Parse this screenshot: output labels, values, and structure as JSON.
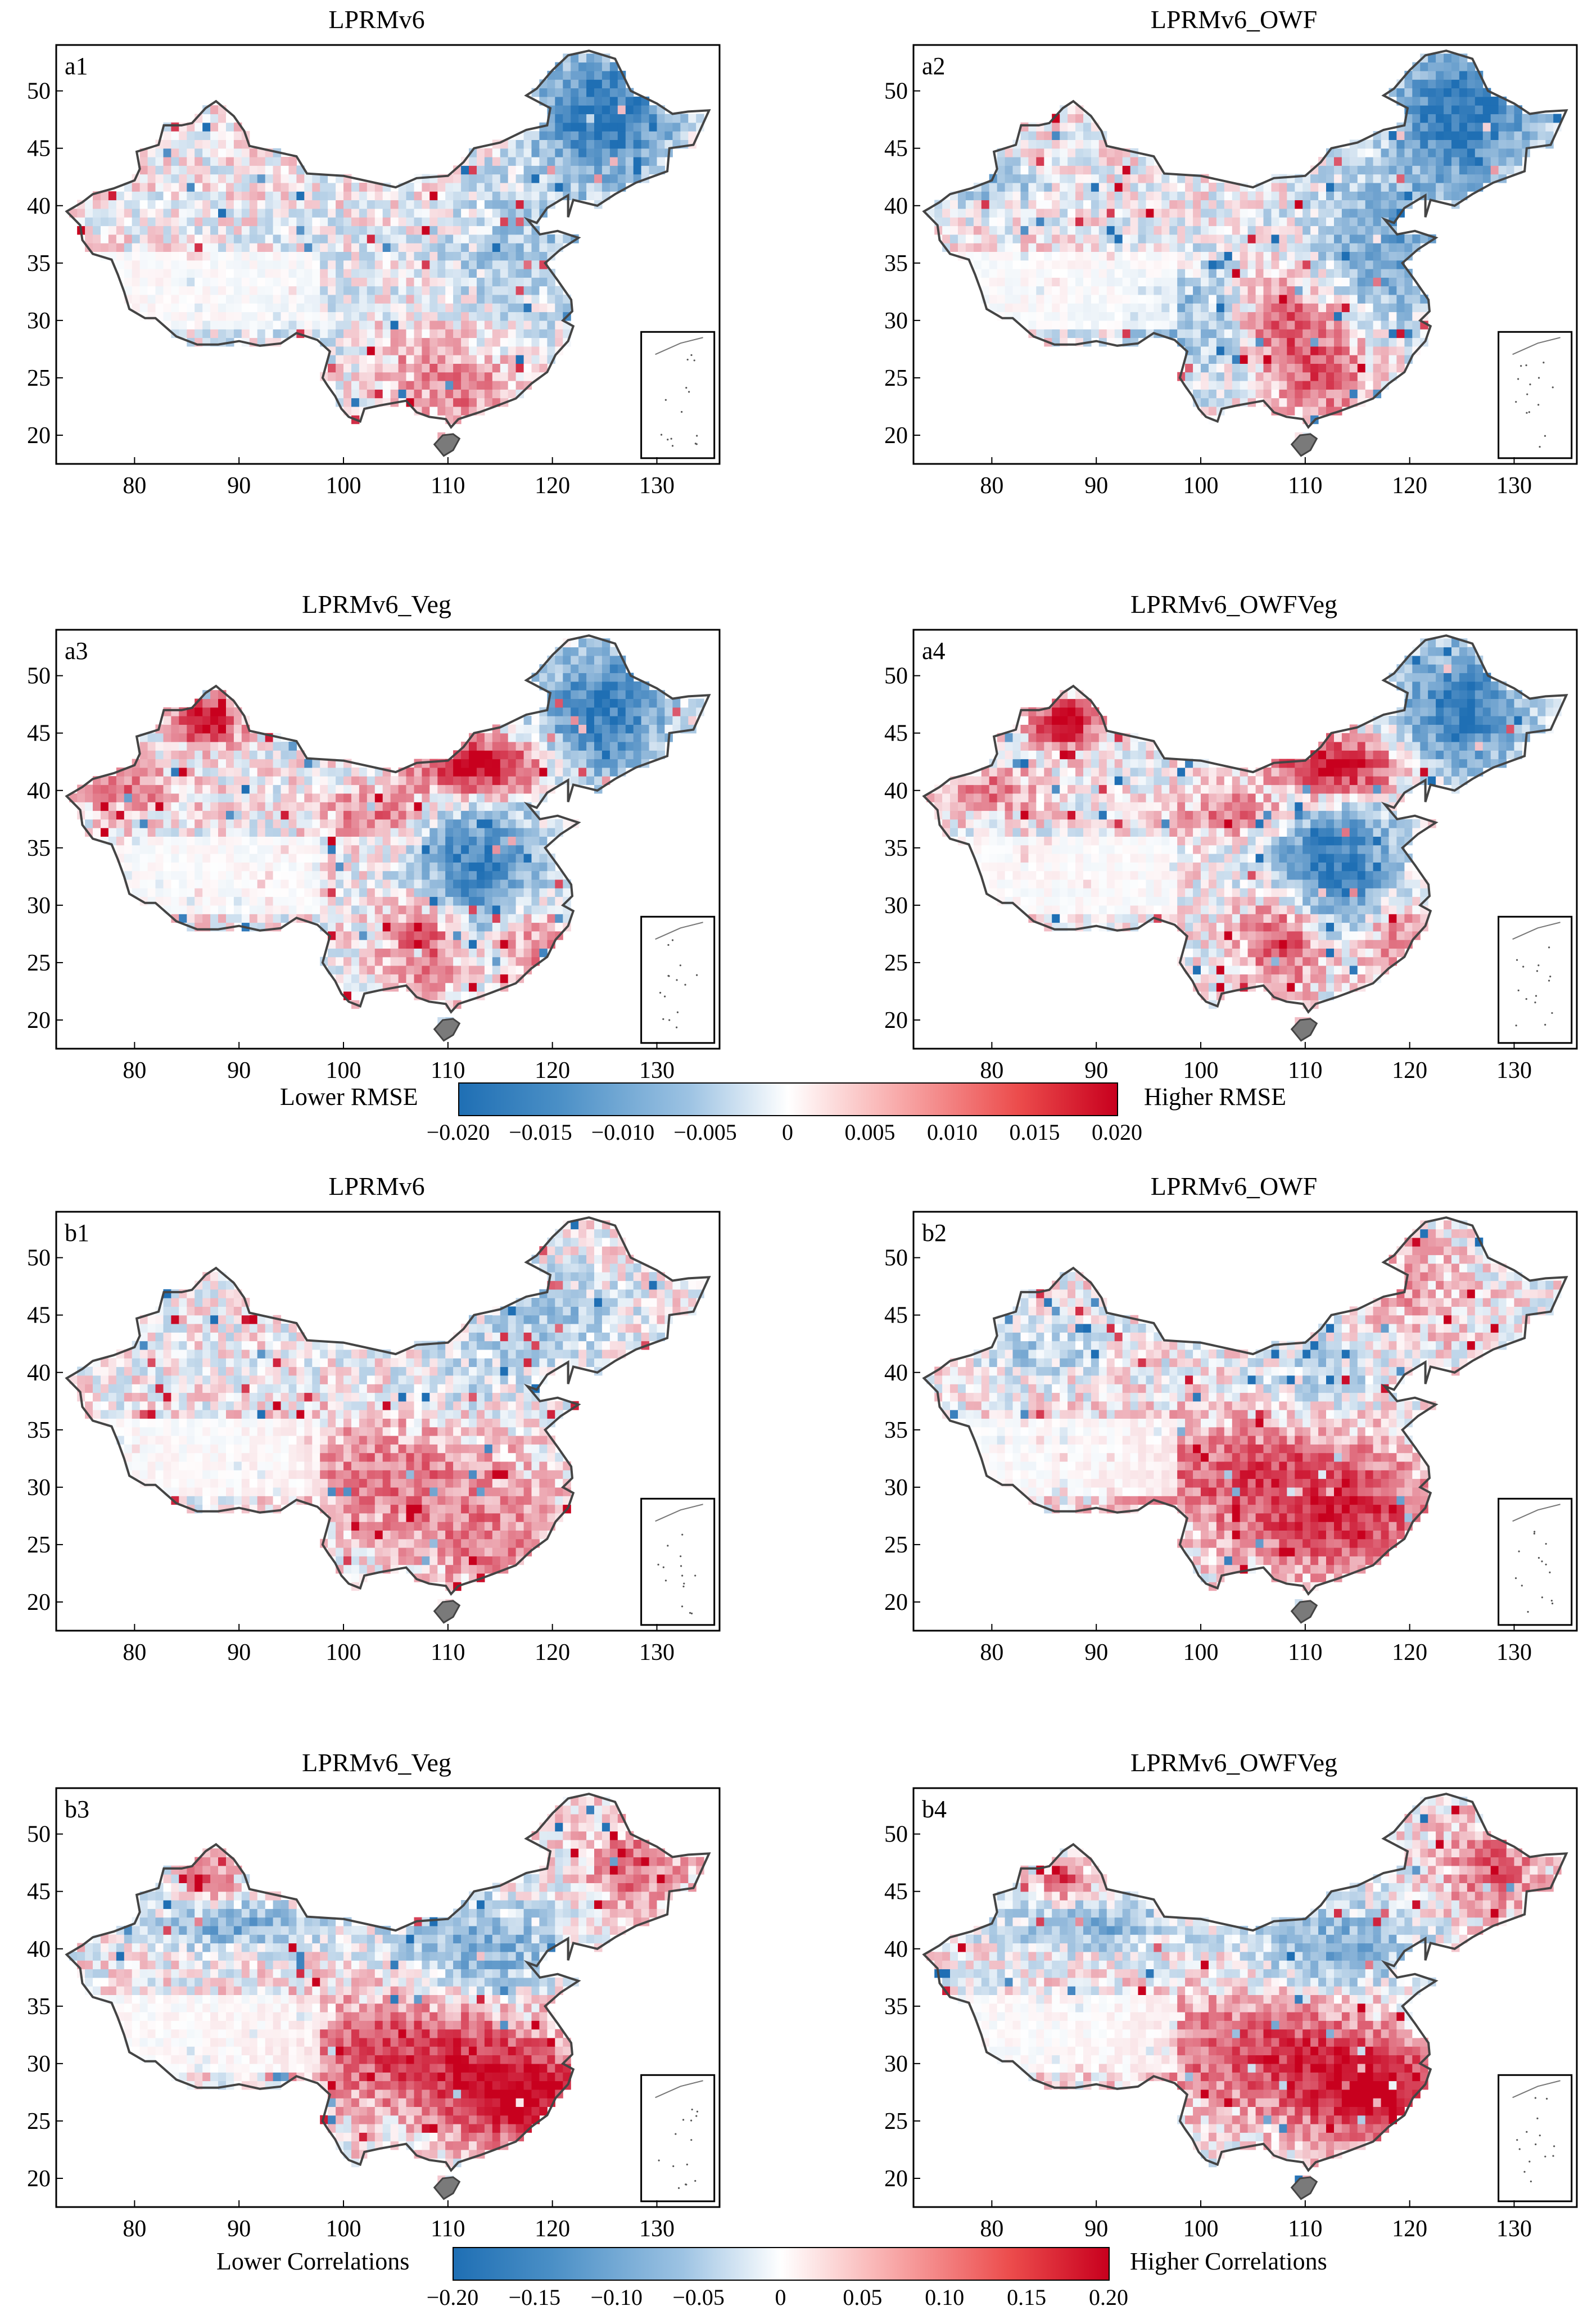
{
  "lon_ticks": [
    "80",
    "90",
    "100",
    "110",
    "120",
    "130"
  ],
  "lat_ticks": [
    "20",
    "25",
    "30",
    "35",
    "40",
    "45",
    "50"
  ],
  "panels": [
    {
      "id": "a1",
      "title": "LPRMv6",
      "label": "a1"
    },
    {
      "id": "a2",
      "title": "LPRMv6_OWF",
      "label": "a2"
    },
    {
      "id": "a3",
      "title": "LPRMv6_Veg",
      "label": "a3"
    },
    {
      "id": "a4",
      "title": "LPRMv6_OWFVeg",
      "label": "a4"
    },
    {
      "id": "b1",
      "title": "LPRMv6",
      "label": "b1"
    },
    {
      "id": "b2",
      "title": "LPRMv6_OWF",
      "label": "b2"
    },
    {
      "id": "b3",
      "title": "LPRMv6_Veg",
      "label": "b3"
    },
    {
      "id": "b4",
      "title": "LPRMv6_OWFVeg",
      "label": "b4"
    }
  ],
  "colorbar_rmse": {
    "low_label": "Lower RMSE",
    "high_label": "Higher RMSE",
    "ticks": [
      "−0.020",
      "−0.015",
      "−0.010",
      "−0.005",
      "0",
      "0.005",
      "0.010",
      "0.015",
      "0.020"
    ],
    "range": [
      -0.02,
      0.02
    ]
  },
  "colorbar_corr": {
    "low_label": "Lower Correlations",
    "high_label": "Higher Correlations",
    "ticks": [
      "−0.20",
      "−0.15",
      "−0.10",
      "−0.05",
      "0",
      "0.05",
      "0.10",
      "0.15",
      "0.20"
    ],
    "range": [
      -0.2,
      0.2
    ]
  },
  "colors": {
    "low": "#1f6fb4",
    "mid": "#ffffff",
    "high": "#c8001e",
    "outline": "#444444"
  }
}
